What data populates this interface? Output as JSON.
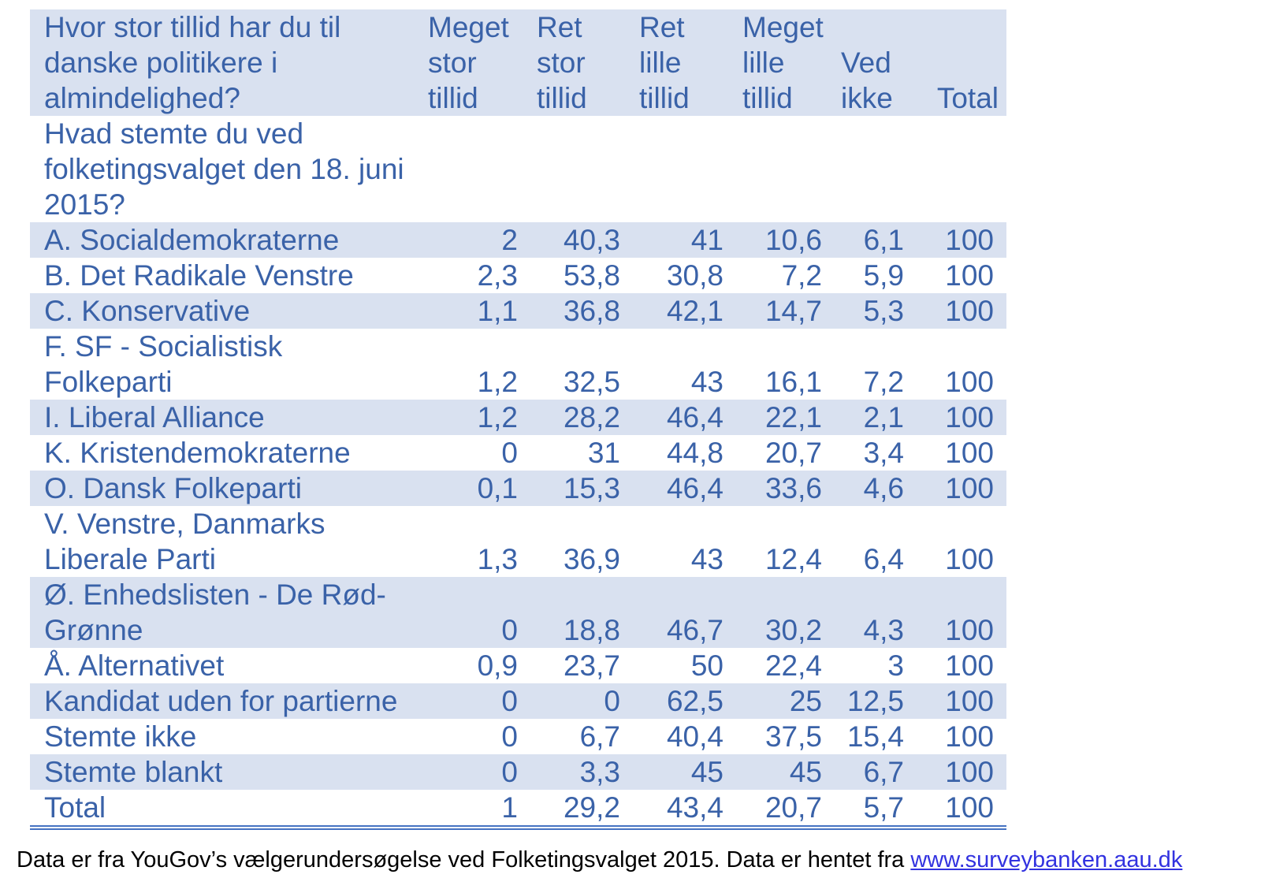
{
  "chart_data": {
    "type": "table",
    "column_question": "Hvor stor tillid har du til\ndanske politikere i\nalmindelighed?",
    "row_question": "Hvad stemte du ved\nfolketingsvalget den 18. juni\n2015?",
    "columns": [
      "Meget\nstor\ntillid",
      "Ret\nstor\ntillid",
      "Ret\nlille\ntillid",
      "Meget\nlille\ntillid",
      "Ved\nikke",
      "Total"
    ],
    "rows": [
      {
        "label": "A. Socialdemokraterne",
        "values": [
          "2",
          "40,3",
          "41",
          "10,6",
          "6,1",
          "100"
        ]
      },
      {
        "label": "B. Det Radikale Venstre",
        "values": [
          "2,3",
          "53,8",
          "30,8",
          "7,2",
          "5,9",
          "100"
        ]
      },
      {
        "label": "C. Konservative",
        "values": [
          "1,1",
          "36,8",
          "42,1",
          "14,7",
          "5,3",
          "100"
        ]
      },
      {
        "label": "F. SF - Socialistisk\nFolkeparti",
        "values": [
          "1,2",
          "32,5",
          "43",
          "16,1",
          "7,2",
          "100"
        ]
      },
      {
        "label": "I. Liberal Alliance",
        "values": [
          "1,2",
          "28,2",
          "46,4",
          "22,1",
          "2,1",
          "100"
        ]
      },
      {
        "label": "K. Kristendemokraterne",
        "values": [
          "0",
          "31",
          "44,8",
          "20,7",
          "3,4",
          "100"
        ]
      },
      {
        "label": "O. Dansk Folkeparti",
        "values": [
          "0,1",
          "15,3",
          "46,4",
          "33,6",
          "4,6",
          "100"
        ]
      },
      {
        "label": "V. Venstre, Danmarks\nLiberale Parti",
        "values": [
          "1,3",
          "36,9",
          "43",
          "12,4",
          "6,4",
          "100"
        ]
      },
      {
        "label": "Ø. Enhedslisten - De Rød-\nGrønne",
        "values": [
          "0",
          "18,8",
          "46,7",
          "30,2",
          "4,3",
          "100"
        ]
      },
      {
        "label": "Å. Alternativet",
        "values": [
          "0,9",
          "23,7",
          "50",
          "22,4",
          "3",
          "100"
        ]
      },
      {
        "label": "Kandidat uden for partierne",
        "values": [
          "0",
          "0",
          "62,5",
          "25",
          "12,5",
          "100"
        ]
      },
      {
        "label": "Stemte ikke",
        "values": [
          "0",
          "6,7",
          "40,4",
          "37,5",
          "15,4",
          "100"
        ]
      },
      {
        "label": "Stemte blankt",
        "values": [
          "0",
          "3,3",
          "45",
          "45",
          "6,7",
          "100"
        ]
      },
      {
        "label": "Total",
        "values": [
          "1",
          "29,2",
          "43,4",
          "20,7",
          "5,7",
          "100"
        ]
      }
    ],
    "colors": {
      "table_text": "#3A62A8",
      "row_stripe": "#D9E1F0",
      "bottom_rule": "#4673C2",
      "link": "#3232E0",
      "footer_text": "#000000"
    }
  },
  "footer": {
    "text": "Data er fra YouGov’s vælgerundersøgelse ved Folketingsvalget 2015. Data er hentet fra ",
    "link_text": "www.surveybanken.aau.dk"
  }
}
